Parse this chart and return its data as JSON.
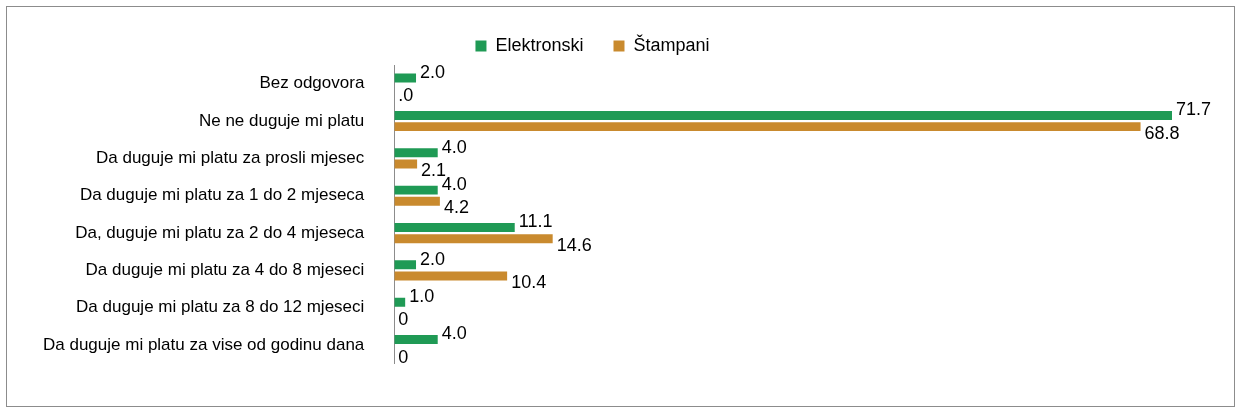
{
  "chart_data": {
    "type": "bar",
    "orientation": "horizontal",
    "categories": [
      "Bez odgovora",
      "Ne ne duguje mi platu",
      "Da duguje mi platu za prosli mjesec",
      "Da duguje mi platu za 1 do 2 mjeseca",
      "Da, duguje mi platu za 2 do 4 mjeseca",
      "Da duguje mi platu za 4 do 8 mjeseci",
      "Da duguje mi platu za 8 do 12 mjeseci",
      "Da duguje mi platu za vise od godinu dana"
    ],
    "series": [
      {
        "name": "Elektronski",
        "color": "#1f9a55",
        "values": [
          2.0,
          71.7,
          4.0,
          4.0,
          11.1,
          2.0,
          1.0,
          4.0
        ],
        "value_labels": [
          "2.0",
          "71.7",
          "4.0",
          "4.0",
          "11.1",
          "2.0",
          "1.0",
          "4.0"
        ]
      },
      {
        "name": "Štampani",
        "color": "#c98a2e",
        "values": [
          0,
          68.8,
          2.1,
          4.2,
          14.6,
          10.4,
          0,
          0
        ],
        "value_labels": [
          ".0",
          "68.8",
          "2.1",
          "4.2",
          "14.6",
          "10.4",
          "0",
          "0"
        ]
      }
    ],
    "legend": "top"
  }
}
